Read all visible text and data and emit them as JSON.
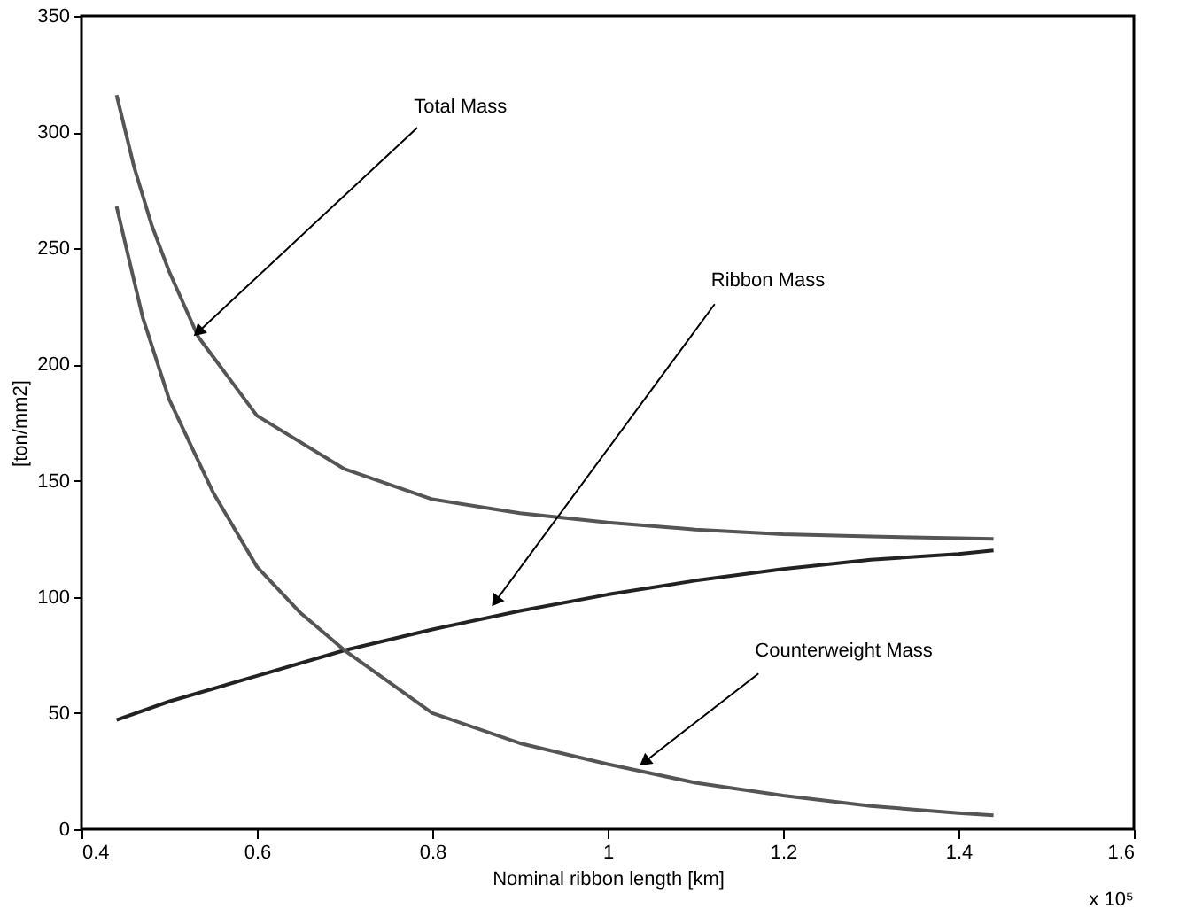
{
  "chart_data": {
    "type": "line",
    "xlabel": "Nominal ribbon length [km]",
    "ylabel": "[ton/mm2]",
    "xlim": [
      0.4,
      1.6
    ],
    "xticks": [
      0.4,
      0.6,
      0.8,
      1,
      1.2,
      1.4,
      1.6
    ],
    "ylim": [
      0,
      350
    ],
    "yticks": [
      0,
      50,
      100,
      150,
      200,
      250,
      300,
      350
    ],
    "grid": false,
    "marker": "none",
    "line_style": "solid",
    "series": [
      {
        "color": "#555555",
        "x": [
          0.44,
          0.46,
          0.48,
          0.5,
          0.533,
          0.6,
          0.7,
          0.8,
          0.9,
          1.0,
          1.1,
          1.2,
          1.3,
          1.44
        ],
        "values": [
          316,
          285,
          260,
          240,
          212,
          178,
          155,
          142,
          136,
          132,
          129,
          127,
          126,
          125
        ]
      },
      {
        "color": "#222222",
        "x": [
          0.44,
          0.5,
          0.6,
          0.7,
          0.8,
          0.9,
          1.0,
          1.1,
          1.2,
          1.3,
          1.4,
          1.44
        ],
        "values": [
          47,
          55,
          66,
          77,
          86,
          94,
          101,
          107,
          112,
          116,
          118.5,
          120
        ]
      },
      {
        "color": "#555555",
        "x": [
          0.44,
          0.47,
          0.5,
          0.55,
          0.6,
          0.65,
          0.7,
          0.8,
          0.9,
          1.0,
          1.1,
          1.2,
          1.3,
          1.4,
          1.44
        ],
        "values": [
          268,
          220,
          185,
          145,
          113,
          93,
          77,
          50,
          37,
          28,
          20,
          14.5,
          10,
          7,
          6
        ]
      }
    ],
    "annotations": [
      {
        "text": "Total Mass",
        "x": 0.533,
        "y": 214
      },
      {
        "text": "Ribbon Mass",
        "x": 0.872,
        "y": 98
      },
      {
        "text": "Counterweight Mass",
        "x": 1.042,
        "y": 29
      },
      "x 10⁵"
    ]
  }
}
